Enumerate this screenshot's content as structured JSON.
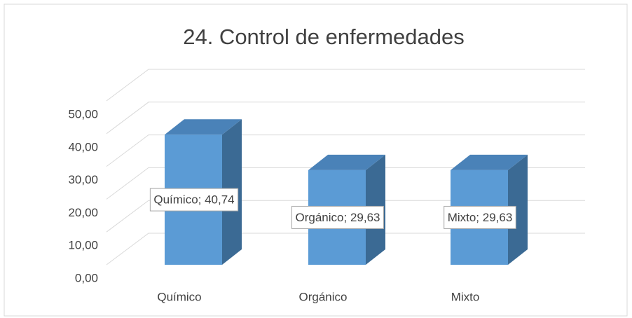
{
  "chart_data": {
    "type": "bar3d",
    "title": "24. Control de enfermedades",
    "categories": [
      "Químico",
      "Orgánico",
      "Mixto"
    ],
    "values": [
      40.74,
      29.63,
      29.63
    ],
    "value_labels": [
      "Químico; 40,74",
      "Orgánico; 29,63",
      "Mixto; 29,63"
    ],
    "color": "#5b9bd5",
    "ylim": [
      0,
      50
    ],
    "yticks": [
      {
        "value": 0,
        "label": "0,00"
      },
      {
        "value": 10,
        "label": "10,00"
      },
      {
        "value": 20,
        "label": "20,00"
      },
      {
        "value": 30,
        "label": "30,00"
      },
      {
        "value": 40,
        "label": "40,00"
      },
      {
        "value": 50,
        "label": "50,00"
      }
    ],
    "grid": true
  }
}
